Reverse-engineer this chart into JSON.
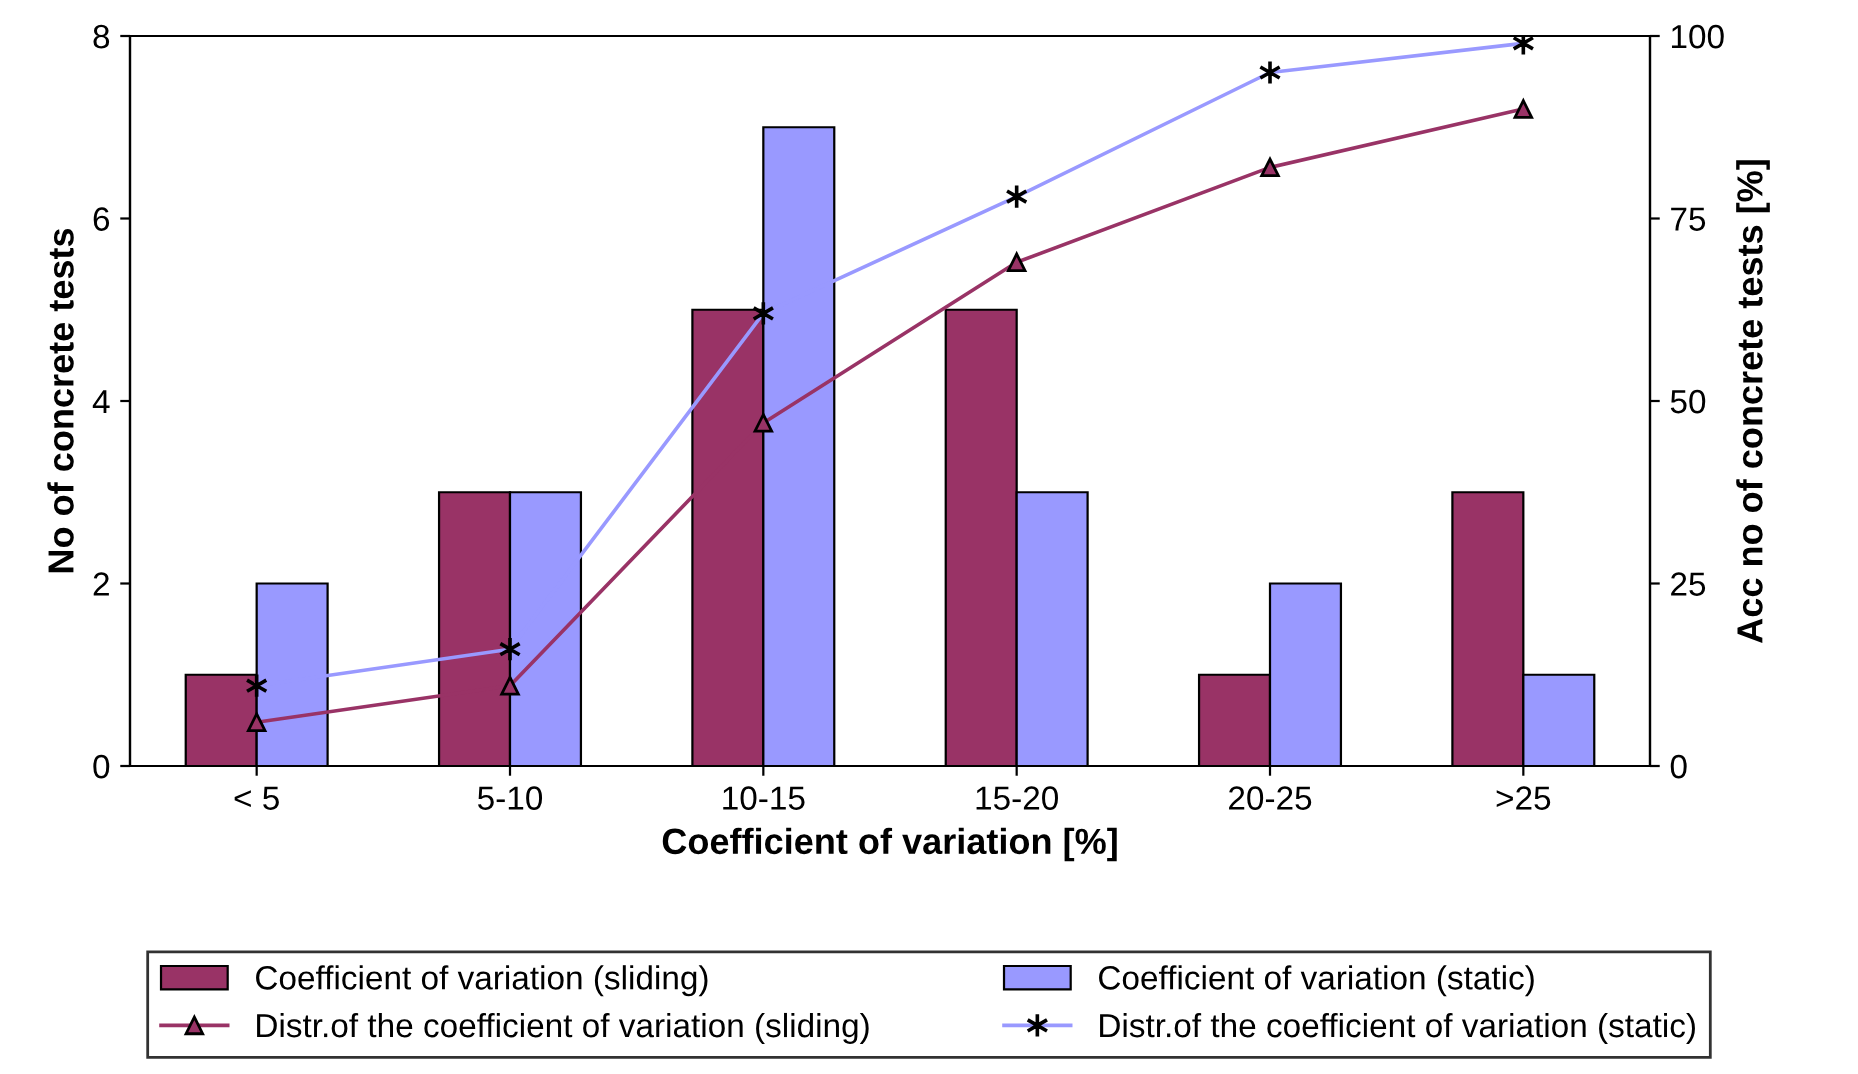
{
  "chart_data": {
    "type": "bar",
    "categories": [
      "< 5",
      "5-10",
      "10-15",
      "15-20",
      "20-25",
      ">25"
    ],
    "xlabel": "Coefficient of variation [%]",
    "ylabel": "No of concrete tests",
    "y2label": "Acc no of concrete tests [%]",
    "ylim": [
      0,
      8
    ],
    "yticks": [
      0,
      2,
      4,
      6,
      8
    ],
    "y2lim": [
      0,
      100
    ],
    "y2ticks": [
      0,
      25,
      50,
      75,
      100
    ],
    "grid": false,
    "legend": "bottom",
    "series": [
      {
        "name": "Coefficient of variation (sliding)",
        "color": "#993366",
        "values": [
          1,
          3,
          5,
          5,
          1,
          3
        ]
      },
      {
        "name": "Coefficient of variation (static)",
        "color": "#9999ff",
        "values": [
          2,
          3,
          7,
          3,
          2,
          1
        ]
      },
      {
        "name": "Distr.of the coefficient of variation (sliding)",
        "type": "line",
        "axis": "y2",
        "color": "#993366",
        "marker": "triangle",
        "values": [
          6,
          11,
          47,
          69,
          82,
          90
        ]
      },
      {
        "name": "Distr.of the coefficient of variation (static)",
        "type": "line",
        "axis": "y2",
        "color": "#9999ff",
        "marker": "cross",
        "values": [
          11,
          16,
          62,
          78,
          95,
          99
        ]
      }
    ]
  }
}
